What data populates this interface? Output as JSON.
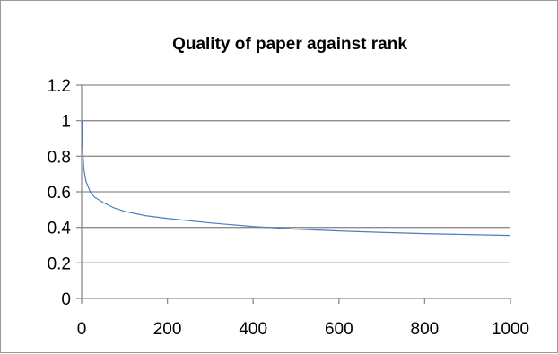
{
  "chart_data": {
    "type": "line",
    "title": "Quality of paper against rank",
    "xlabel": "",
    "ylabel": "",
    "xlim": [
      0,
      1000
    ],
    "ylim": [
      0,
      1.2
    ],
    "x_ticks": [
      0,
      200,
      400,
      600,
      800,
      1000
    ],
    "x_tick_labels": [
      "0",
      "200",
      "400",
      "600",
      "800",
      "1000"
    ],
    "y_ticks": [
      0,
      0.2,
      0.4,
      0.6,
      0.8,
      1,
      1.2
    ],
    "y_tick_labels": [
      "0",
      "0.2",
      "0.4",
      "0.6",
      "0.8",
      "1",
      "1.2"
    ],
    "grid": "horizontal",
    "legend": "none",
    "series": [
      {
        "color": "#4a7ebb",
        "x": [
          1,
          2,
          5,
          10,
          20,
          30,
          50,
          75,
          100,
          150,
          200,
          300,
          400,
          500,
          600,
          700,
          800,
          900,
          1000
        ],
        "y": [
          1.0,
          0.86,
          0.73,
          0.66,
          0.6,
          0.57,
          0.54,
          0.51,
          0.49,
          0.465,
          0.45,
          0.425,
          0.405,
          0.39,
          0.38,
          0.372,
          0.365,
          0.36,
          0.355
        ]
      }
    ]
  }
}
